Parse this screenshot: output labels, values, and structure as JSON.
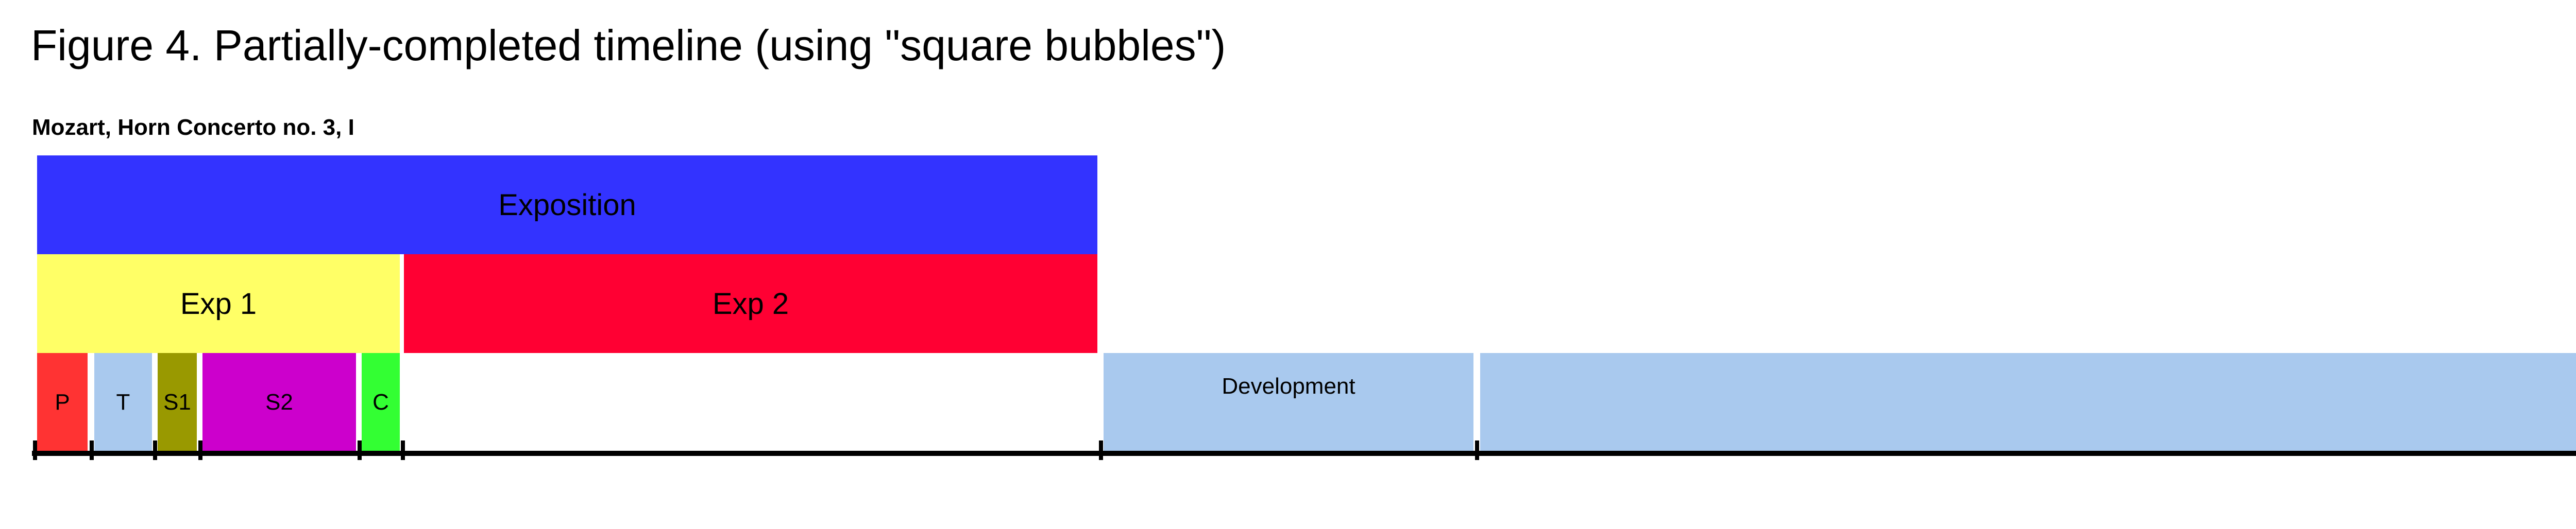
{
  "figure_title": "Figure 4. Partially-completed timeline (using \"square bubbles\")",
  "piece_title": "Mozart, Horn Concerto no. 3, I",
  "levels": {
    "top": [
      {
        "label": "Exposition",
        "color": "#3333ff"
      }
    ],
    "middle": [
      {
        "label": "Exp 1",
        "color": "#ffff66"
      },
      {
        "label": "Exp 2",
        "color": "#ff0033"
      }
    ],
    "bottom": [
      {
        "label": "P",
        "color": "#ff3333"
      },
      {
        "label": "T",
        "color": "#a9c9ee"
      },
      {
        "label": "S1",
        "color": "#999900"
      },
      {
        "label": "S2",
        "color": "#cc00cc"
      },
      {
        "label": "C",
        "color": "#33ff33"
      },
      {
        "label": "Development",
        "color": "#a9c9ee"
      },
      {
        "label": "",
        "color": "#a9c9ee"
      }
    ]
  },
  "axis_color": "#000000"
}
